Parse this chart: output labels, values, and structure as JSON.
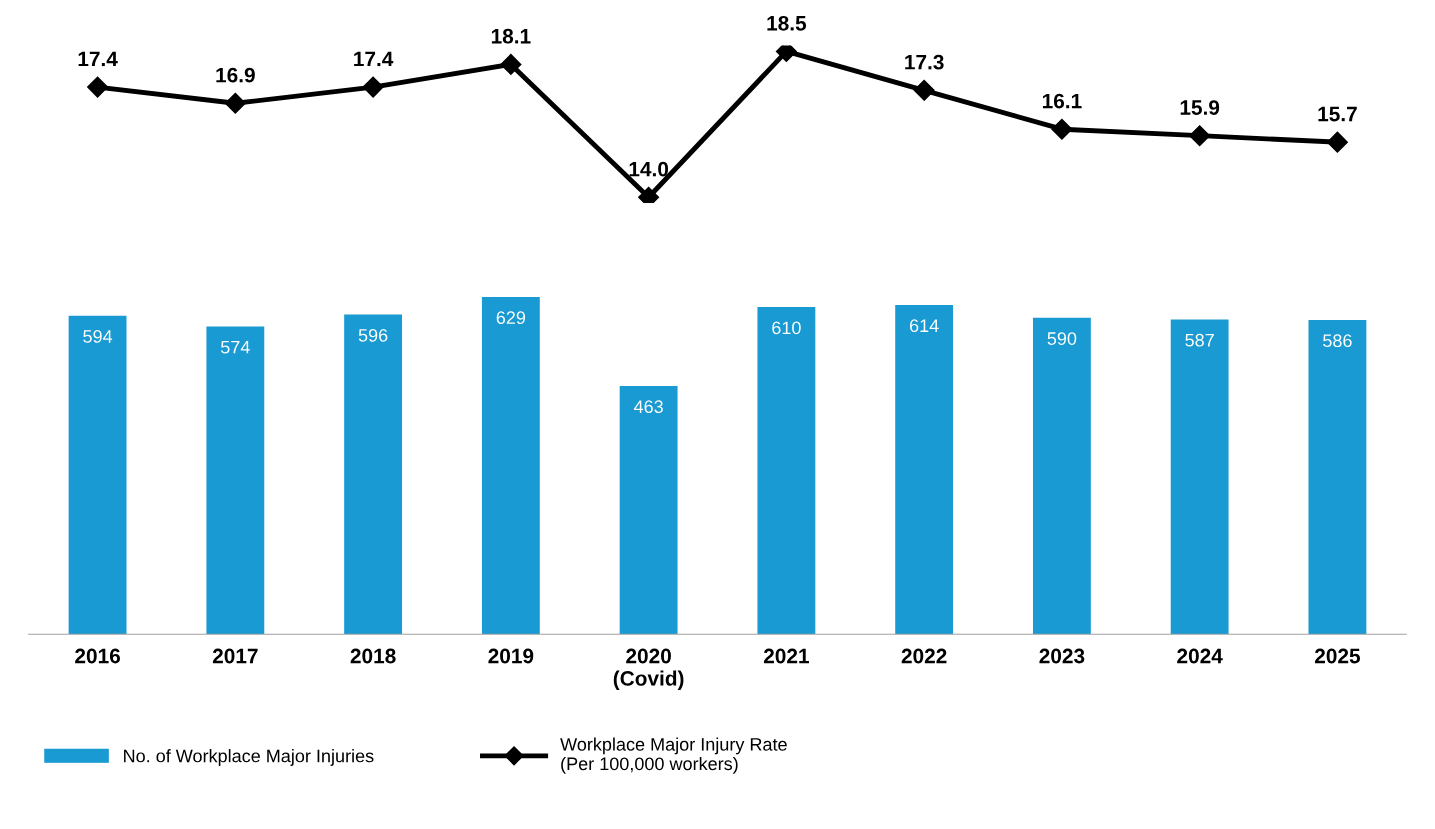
{
  "chart_data": [
    {
      "type": "line",
      "categories": [
        null,
        null,
        null,
        null,
        null,
        null,
        null,
        null,
        null,
        null
      ],
      "series": [
        {
          "name": "Workplace Major Injury Rate\n(Per 100,000 workers)",
          "color": "#000000",
          "marker": "diamond",
          "values": [
            17.4,
            16.9,
            17.4,
            18.1,
            14.0,
            18.5,
            17.3,
            16.1,
            15.9,
            15.7
          ],
          "value_labels": [
            "17.4",
            "16.9",
            "17.4",
            "18.1",
            "14.0",
            "18.5",
            "17.3",
            "16.1",
            "15.9",
            "15.7"
          ]
        }
      ],
      "legend": "bottom",
      "tick_labels": false
    },
    {
      "type": "bar",
      "categories": [
        "2016",
        "2017",
        "2018",
        "2019",
        "2020\n(Covid)",
        "2021",
        "2022",
        "2023",
        "2024",
        "2025"
      ],
      "series": [
        {
          "name": "No. of Workplace Major Injuries",
          "color": "#1a9ad2",
          "values": [
            594,
            574,
            596,
            629,
            463,
            610,
            614,
            590,
            587,
            586
          ]
        }
      ],
      "data_labels": true,
      "legend": "bottom",
      "tick_labels": "x"
    }
  ]
}
